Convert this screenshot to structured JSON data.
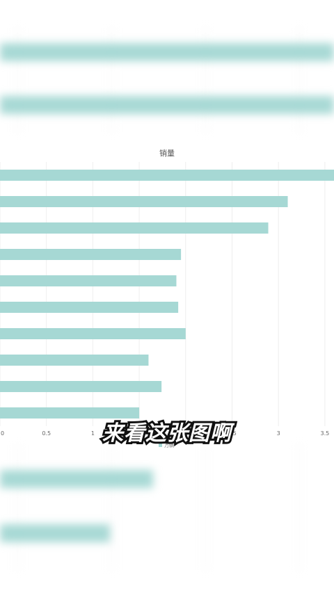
{
  "chart_data": {
    "type": "bar",
    "orientation": "horizontal",
    "title": "销量",
    "xlim": [
      0,
      3.6
    ],
    "x_ticks": [
      "0",
      "0.5",
      "1",
      "1.5",
      "2",
      "2.5",
      "3",
      "3.5"
    ],
    "series": [
      {
        "name": "万辆",
        "color": "#a6d8d4",
        "values": [
          3.6,
          3.1,
          2.89,
          1.95,
          1.9,
          1.92,
          2.0,
          1.6,
          1.74,
          1.5
        ]
      }
    ],
    "grid": true,
    "legend": "bottom"
  },
  "subtitle": "来看这张图啊",
  "colors": {
    "bar": "#a6d8d4",
    "grid": "#eeeeee",
    "background": "#ffffff"
  }
}
